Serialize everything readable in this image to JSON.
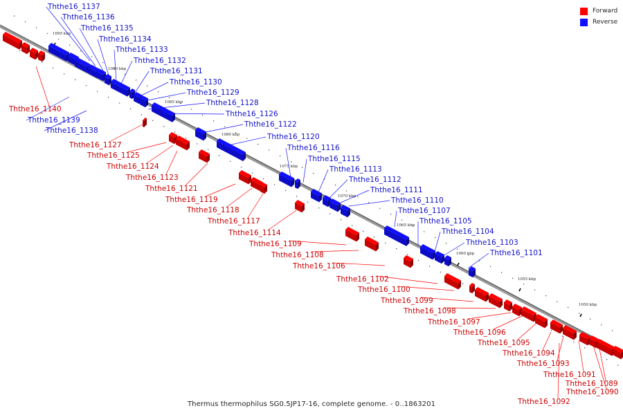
{
  "colors": {
    "forward": "#ff0000",
    "reverse": "#1010ff",
    "axis": "#909090"
  },
  "legend": [
    {
      "label": "Forward",
      "color": "#ff0000"
    },
    {
      "label": "Reverse",
      "color": "#1010ff"
    }
  ],
  "caption": "Thermus thermophilus SG0.5JP17-16, complete genome. - 0..1863201",
  "ticks": [
    "1095 kbp",
    "1090 kbp",
    "1085 kbp",
    "1080 kbp",
    "1075 kbp",
    "1070 kbp",
    "1065 kbp",
    "1060 kbp",
    "1055 kbp",
    "1050 kbp"
  ],
  "genes_reverse": [
    "Ththe16_1137",
    "Ththe16_1136",
    "Ththe16_1135",
    "Ththe16_1134",
    "Ththe16_1133",
    "Ththe16_1132",
    "Ththe16_1131",
    "Ththe16_1130",
    "Ththe16_1129",
    "Ththe16_1128",
    "Ththe16_1126",
    "Ththe16_1122",
    "Ththe16_1120",
    "Ththe16_1116",
    "Ththe16_1115",
    "Ththe16_1113",
    "Ththe16_1112",
    "Ththe16_1111",
    "Ththe16_1110",
    "Ththe16_1107",
    "Ththe16_1105",
    "Ththe16_1104",
    "Ththe16_1103",
    "Ththe16_1101",
    "Ththe16_1139",
    "Ththe16_1138"
  ],
  "genes_forward": [
    "Ththe16_1140",
    "Ththe16_1127",
    "Ththe16_1125",
    "Ththe16_1124",
    "Ththe16_1123",
    "Ththe16_1121",
    "Ththe16_1119",
    "Ththe16_1118",
    "Ththe16_1117",
    "Ththe16_1114",
    "Ththe16_1109",
    "Ththe16_1108",
    "Ththe16_1106",
    "Ththe16_1102",
    "Ththe16_1100",
    "Ththe16_1099",
    "Ththe16_1098",
    "Ththe16_1097",
    "Ththe16_1096",
    "Ththe16_1095",
    "Ththe16_1094",
    "Ththe16_1093",
    "Ththe16_1091",
    "Ththe16_1090",
    "Ththe16_1089",
    "Ththe16_1092"
  ]
}
